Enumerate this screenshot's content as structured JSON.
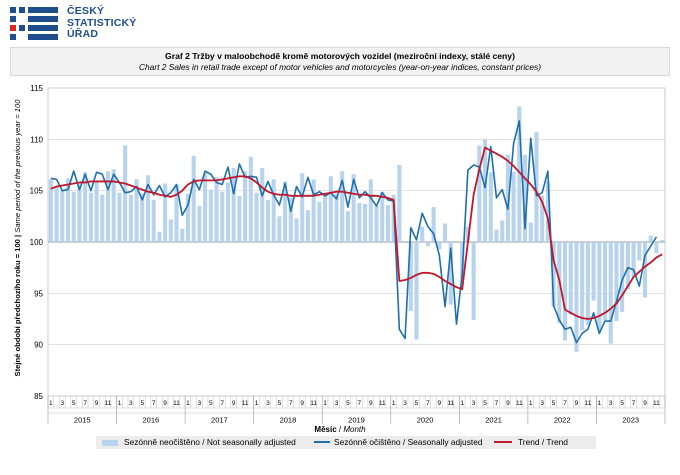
{
  "logo": {
    "line1": "ČESKÝ",
    "line2": "STATISTICKÝ",
    "line3": "ÚŘAD"
  },
  "titles": {
    "cz": "Graf 2 Tržby v maloobchodě kromě motorových vozidel (meziroční indexy, stálé ceny)",
    "en": "Chart 2 Sales in retail trade except of motor vehicles and motorcycles (year-on-year indices, constant prices)"
  },
  "colors": {
    "bars": "#b8d3ee",
    "seasonal": "#1f6fad",
    "trend": "#c0172a",
    "grid": "#d0d0d0"
  },
  "chart_data": {
    "type": "bar+line",
    "ylabel_cz": "Stejné období předchozího roku = 100",
    "ylabel_en": "Same period of the previous year = 100",
    "xlabel_cz": "Měsíc",
    "xlabel_en": "Month",
    "ylim": [
      85,
      115
    ],
    "yticks": [
      "85",
      "90",
      "95",
      "100",
      "105",
      "110",
      "115"
    ],
    "baseline": 100,
    "years": [
      "2015",
      "2016",
      "2017",
      "2018",
      "2019",
      "2020",
      "2021",
      "2022",
      "2023"
    ],
    "month_tick_labels": [
      "1",
      "",
      "3",
      "",
      "5",
      "",
      "7",
      "",
      "9",
      "",
      "11",
      ""
    ],
    "months_2023": 12,
    "series": [
      {
        "name": "Sezónně neočištěno / Not seasonally adjusted",
        "kind": "bar",
        "values": [
          106.1,
          105.3,
          105.1,
          106.2,
          104.9,
          105.6,
          106.8,
          104.8,
          105.9,
          104.6,
          106.9,
          107.1,
          104.8,
          109.4,
          104.6,
          106.1,
          104.7,
          106.5,
          104.1,
          101.0,
          105.7,
          102.2,
          105.6,
          101.3,
          104.7,
          108.4,
          103.5,
          106.7,
          105.1,
          106.3,
          104.9,
          105.8,
          107.2,
          104.5,
          106.9,
          108.3,
          104.8,
          107.2,
          104.1,
          106.1,
          102.5,
          105.9,
          104.3,
          102.3,
          106.7,
          103.1,
          106.1,
          103.9,
          104.8,
          106.4,
          104.7,
          106.9,
          103.0,
          106.6,
          103.8,
          103.7,
          106.1,
          103.5,
          104.9,
          103.6,
          104.6,
          107.5,
          99.9,
          93.3,
          90.5,
          101.5,
          99.6,
          103.4,
          99.3,
          101.8,
          93.9,
          100.0,
          96.4,
          101.5,
          92.4,
          109.4,
          110.0,
          106.8,
          101.2,
          102.1,
          108.5,
          106.8,
          113.2,
          108.5,
          101.9,
          110.7,
          104.5,
          105.9,
          93.7,
          92.1,
          90.4,
          92.9,
          89.3,
          91.4,
          91.9,
          94.3,
          91.4,
          92.4,
          90.1,
          92.3,
          93.2,
          95.4,
          96.6,
          98.2,
          94.6,
          100.6,
          98.9,
          100.2
        ]
      },
      {
        "name": "Sezónně očištěno / Seasonally adjusted",
        "kind": "line",
        "values": [
          106.2,
          106.1,
          105.0,
          105.1,
          106.9,
          105.1,
          106.6,
          105.0,
          106.8,
          106.6,
          105.1,
          106.6,
          105.8,
          104.8,
          104.9,
          105.4,
          104.1,
          105.6,
          104.6,
          105.5,
          104.4,
          104.8,
          105.6,
          102.6,
          103.6,
          106.1,
          105.1,
          106.9,
          106.6,
          105.8,
          105.6,
          107.3,
          104.7,
          107.6,
          106.3,
          106.4,
          106.3,
          104.5,
          105.9,
          104.6,
          103.6,
          105.7,
          103.0,
          105.4,
          104.4,
          106.3,
          104.6,
          104.9,
          104.5,
          104.8,
          104.2,
          106.0,
          103.4,
          106.1,
          104.3,
          104.9,
          104.3,
          103.5,
          104.8,
          104.1,
          104.0,
          91.5,
          90.6,
          101.4,
          100.2,
          102.8,
          101.5,
          100.8,
          98.7,
          93.7,
          99.4,
          92.0,
          96.9,
          107.0,
          107.5,
          107.3,
          105.3,
          109.3,
          104.3,
          105.1,
          103.2,
          109.6,
          111.8,
          101.3,
          110.1,
          104.5,
          104.8,
          106.9,
          93.8,
          92.4,
          91.5,
          91.7,
          90.2,
          91.1,
          91.5,
          93.1,
          91.1,
          92.3,
          92.3,
          94.2,
          96.3,
          97.5,
          97.3,
          95.7,
          98.7,
          99.6,
          100.5,
          null
        ]
      },
      {
        "name": "Trend / Trend",
        "kind": "line",
        "values": [
          105.2,
          105.4,
          105.5,
          105.6,
          105.7,
          105.8,
          105.8,
          105.9,
          105.9,
          105.9,
          105.9,
          105.9,
          105.8,
          105.7,
          105.5,
          105.3,
          105.1,
          104.9,
          104.8,
          104.6,
          104.5,
          104.4,
          104.6,
          105.0,
          105.6,
          105.9,
          106.0,
          106.0,
          106.0,
          106.0,
          106.1,
          106.2,
          106.3,
          106.4,
          106.4,
          106.2,
          105.8,
          105.3,
          104.9,
          104.7,
          104.6,
          104.6,
          104.5,
          104.5,
          104.5,
          104.5,
          104.5,
          104.6,
          104.7,
          104.8,
          104.9,
          104.9,
          104.8,
          104.7,
          104.6,
          104.6,
          104.5,
          104.5,
          104.4,
          104.3,
          104.1,
          96.2,
          96.3,
          96.5,
          96.8,
          97.0,
          97.0,
          96.9,
          96.6,
          96.2,
          95.9,
          95.6,
          95.4,
          100.0,
          104.6,
          107.1,
          109.2,
          108.9,
          108.6,
          108.3,
          107.9,
          107.4,
          106.8,
          106.2,
          105.6,
          104.9,
          103.9,
          102.3,
          98.2,
          96.3,
          93.4,
          93.1,
          92.8,
          92.6,
          92.5,
          92.6,
          92.8,
          93.1,
          93.5,
          94.0,
          94.8,
          95.7,
          96.6,
          97.1,
          97.6,
          98.0,
          98.5,
          98.8
        ]
      }
    ],
    "legend": [
      "Sezónně neočištěno / Not seasonally adjusted",
      "Sezónně očištěno / Seasonally adjusted",
      "Trend / Trend"
    ]
  }
}
